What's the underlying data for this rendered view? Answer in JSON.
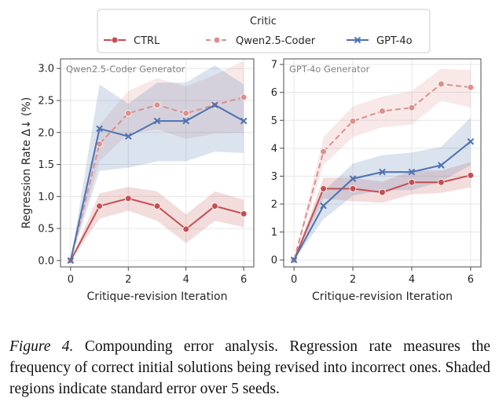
{
  "legend": {
    "title": "Critic",
    "entries": [
      "CTRL",
      "Qwen2.5-Coder",
      "GPT-4o"
    ]
  },
  "colors": {
    "CTRL": "#c44e52",
    "Qwen2.5-Coder": "#dd8f8c",
    "GPT-4o": "#4c72b0"
  },
  "chart_data": [
    {
      "type": "line",
      "title": "Qwen2.5-Coder Generator",
      "xlabel": "Critique-revision Iteration",
      "ylabel": "Regression Rate Δ↓ (%)",
      "x": [
        0,
        1,
        2,
        3,
        4,
        5,
        6
      ],
      "xlim": [
        -0.35,
        6.35
      ],
      "ylim": [
        -0.1,
        3.15
      ],
      "xticks": [
        0,
        2,
        4,
        6
      ],
      "yticks": [
        0.0,
        0.5,
        1.0,
        1.5,
        2.0,
        2.5,
        3.0
      ],
      "ytick_labels": [
        "0.0",
        "0.5",
        "1.0",
        "1.5",
        "2.0",
        "2.5",
        "3.0"
      ],
      "series": [
        {
          "name": "CTRL",
          "values": [
            0,
            0.85,
            0.97,
            0.85,
            0.49,
            0.85,
            0.73
          ],
          "lower": [
            0,
            0.65,
            0.78,
            0.62,
            0.27,
            0.62,
            0.52
          ],
          "upper": [
            0,
            1.05,
            1.15,
            1.08,
            0.72,
            1.08,
            0.95
          ]
        },
        {
          "name": "Qwen2.5-Coder",
          "values": [
            0,
            1.82,
            2.3,
            2.43,
            2.3,
            2.43,
            2.55
          ],
          "lower": [
            0,
            1.55,
            1.98,
            2.05,
            1.9,
            1.98,
            2.0
          ],
          "upper": [
            0,
            2.12,
            2.65,
            2.85,
            2.72,
            2.9,
            3.12
          ]
        },
        {
          "name": "GPT-4o",
          "values": [
            0,
            2.06,
            1.94,
            2.18,
            2.18,
            2.43,
            2.18
          ],
          "lower": [
            0,
            1.4,
            1.45,
            1.55,
            1.55,
            1.7,
            1.68
          ],
          "upper": [
            0,
            2.75,
            2.45,
            2.78,
            2.78,
            3.05,
            2.75
          ]
        }
      ]
    },
    {
      "type": "line",
      "title": "GPT-4o Generator",
      "xlabel": "Critique-revision Iteration",
      "ylabel": "",
      "x": [
        0,
        1,
        2,
        3,
        4,
        5,
        6
      ],
      "xlim": [
        -0.35,
        6.35
      ],
      "ylim": [
        -0.25,
        7.2
      ],
      "xticks": [
        0,
        2,
        4,
        6
      ],
      "yticks": [
        0,
        1,
        2,
        3,
        4,
        5,
        6,
        7
      ],
      "ytick_labels": [
        "0",
        "1",
        "2",
        "3",
        "4",
        "5",
        "6",
        "7"
      ],
      "series": [
        {
          "name": "CTRL",
          "values": [
            0,
            2.55,
            2.55,
            2.42,
            2.78,
            2.78,
            3.03
          ],
          "lower": [
            0,
            2.2,
            2.1,
            2.05,
            2.35,
            2.4,
            2.6
          ],
          "upper": [
            0,
            2.95,
            2.95,
            2.8,
            3.2,
            3.2,
            3.5
          ]
        },
        {
          "name": "Qwen2.5-Coder",
          "values": [
            0,
            3.88,
            4.97,
            5.33,
            5.45,
            6.3,
            6.18
          ],
          "lower": [
            0,
            3.4,
            4.4,
            4.75,
            4.85,
            5.7,
            5.45
          ],
          "upper": [
            0,
            4.4,
            5.5,
            5.85,
            6.05,
            6.85,
            6.8
          ]
        },
        {
          "name": "GPT-4o",
          "values": [
            0,
            1.94,
            2.91,
            3.15,
            3.15,
            3.39,
            4.24
          ],
          "lower": [
            0,
            1.45,
            2.3,
            2.5,
            2.5,
            2.8,
            3.4
          ],
          "upper": [
            0,
            2.45,
            3.45,
            3.75,
            3.85,
            4.05,
            5.1
          ]
        }
      ]
    }
  ],
  "caption": {
    "label": "Figure 4.",
    "text": " Compounding error analysis. Regression rate measures the frequency of correct initial solutions being revised into incorrect ones. Shaded regions indicate standard error over 5 seeds."
  }
}
